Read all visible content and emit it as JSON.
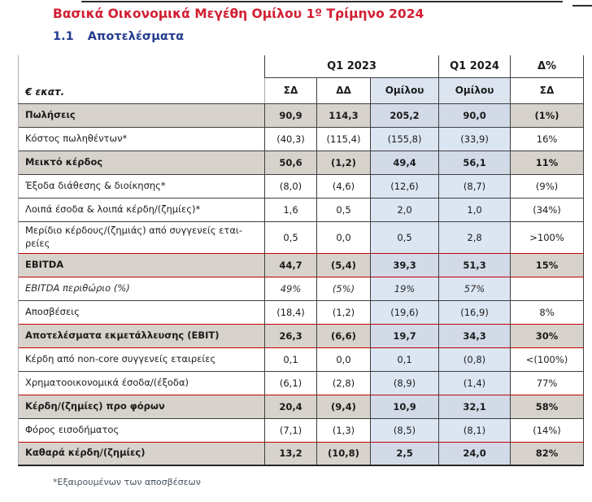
{
  "page": {
    "title": "Βασικά Οικονομικά Μεγέθη Ομίλου 1º Τρίμηνο 2024",
    "section_number": "1.1",
    "section_title": "Αποτελέσματα",
    "footnote": "*Εξαιρουμένων των αποσβέσεων"
  },
  "colors": {
    "title_red": "#D21F33",
    "heading_blue": "#253C8F",
    "total_row_gray": "#D7D3CC",
    "omilou_blue": "#DCE5F2",
    "omilou_blue_on_gray": "#D2DAE8",
    "accent_border_red": "#C00000"
  },
  "table": {
    "unit_label": "€ εκατ.",
    "col_groups": [
      {
        "label": "Q1 2023",
        "span": 3
      },
      {
        "label": "Q1 2024",
        "span": 1
      },
      {
        "label": "Δ%",
        "span": 1
      }
    ],
    "sub_headers": [
      "ΣΔ",
      "ΔΔ",
      "Ομίλου",
      "Ομίλου",
      "ΣΔ"
    ],
    "rows": [
      {
        "label": "Πωλήσεις",
        "values": [
          "90,9",
          "114,3",
          "205,2",
          "90,0",
          "(1%)"
        ],
        "style": "total",
        "top": "black"
      },
      {
        "label": "Κόστος πωληθέντων*",
        "values": [
          "(40,3)",
          "(115,4)",
          "(155,8)",
          "(33,9)",
          "16%"
        ],
        "style": "normal",
        "top": "black"
      },
      {
        "label": "Μεικτό κέρδος",
        "values": [
          "50,6",
          "(1,2)",
          "49,4",
          "56,1",
          "11%"
        ],
        "style": "total",
        "top": "black"
      },
      {
        "label": "Έξοδα διάθεσης & διοίκησης*",
        "values": [
          "(8,0)",
          "(4,6)",
          "(12,6)",
          "(8,7)",
          "(9%)"
        ],
        "style": "normal",
        "top": "black"
      },
      {
        "label": "Λοιπά έσοδα & λοιπά κέρδη/(ζημίες)*",
        "values": [
          "1,6",
          "0,5",
          "2,0",
          "1,0",
          "(34%)"
        ],
        "style": "normal",
        "top": "black"
      },
      {
        "label": "Μερίδιο κέρδους/(ζημιάς) από συγγενείς εται-ρείες",
        "values": [
          "0,5",
          "0,0",
          "0,5",
          "2,8",
          ">100%"
        ],
        "style": "normal",
        "top": "black",
        "two_line": true
      },
      {
        "label": "EBITDA",
        "values": [
          "44,7",
          "(5,4)",
          "39,3",
          "51,3",
          "15%"
        ],
        "style": "total",
        "top": "red"
      },
      {
        "label": "EBITDA περιθώριο (%)",
        "values": [
          "49%",
          "(5%)",
          "19%",
          "57%",
          ""
        ],
        "style": "italic",
        "top": "red"
      },
      {
        "label": "Αποσβέσεις",
        "values": [
          "(18,4)",
          "(1,2)",
          "(19,6)",
          "(16,9)",
          "8%"
        ],
        "style": "normal",
        "top": "black"
      },
      {
        "label": "Αποτελέσματα εκμετάλλευσης (EBIT)",
        "values": [
          "26,3",
          "(6,6)",
          "19,7",
          "34,3",
          "30%"
        ],
        "style": "total",
        "top": "red"
      },
      {
        "label": "Κέρδη από non-core συγγενείς εταιρείες",
        "values": [
          "0,1",
          "0,0",
          "0,1",
          "(0,8)",
          "<(100%)"
        ],
        "style": "normal",
        "top": "red"
      },
      {
        "label": "Χρηματοοικονομικά έσοδα/(έξοδα)",
        "values": [
          "(6,1)",
          "(2,8)",
          "(8,9)",
          "(1,4)",
          "77%"
        ],
        "style": "normal",
        "top": "black"
      },
      {
        "label": "Κέρδη/(ζημίες) προ φόρων",
        "values": [
          "20,4",
          "(9,4)",
          "10,9",
          "32,1",
          "58%"
        ],
        "style": "total",
        "top": "red"
      },
      {
        "label": "Φόρος εισοδήματος",
        "values": [
          "(7,1)",
          "(1,3)",
          "(8,5)",
          "(8,1)",
          "(14%)"
        ],
        "style": "normal",
        "top": "black"
      },
      {
        "label": "Καθαρά κέρδη/(ζημίες)",
        "values": [
          "13,2",
          "(10,8)",
          "2,5",
          "24,0",
          "82%"
        ],
        "style": "total",
        "top": "red"
      }
    ]
  }
}
